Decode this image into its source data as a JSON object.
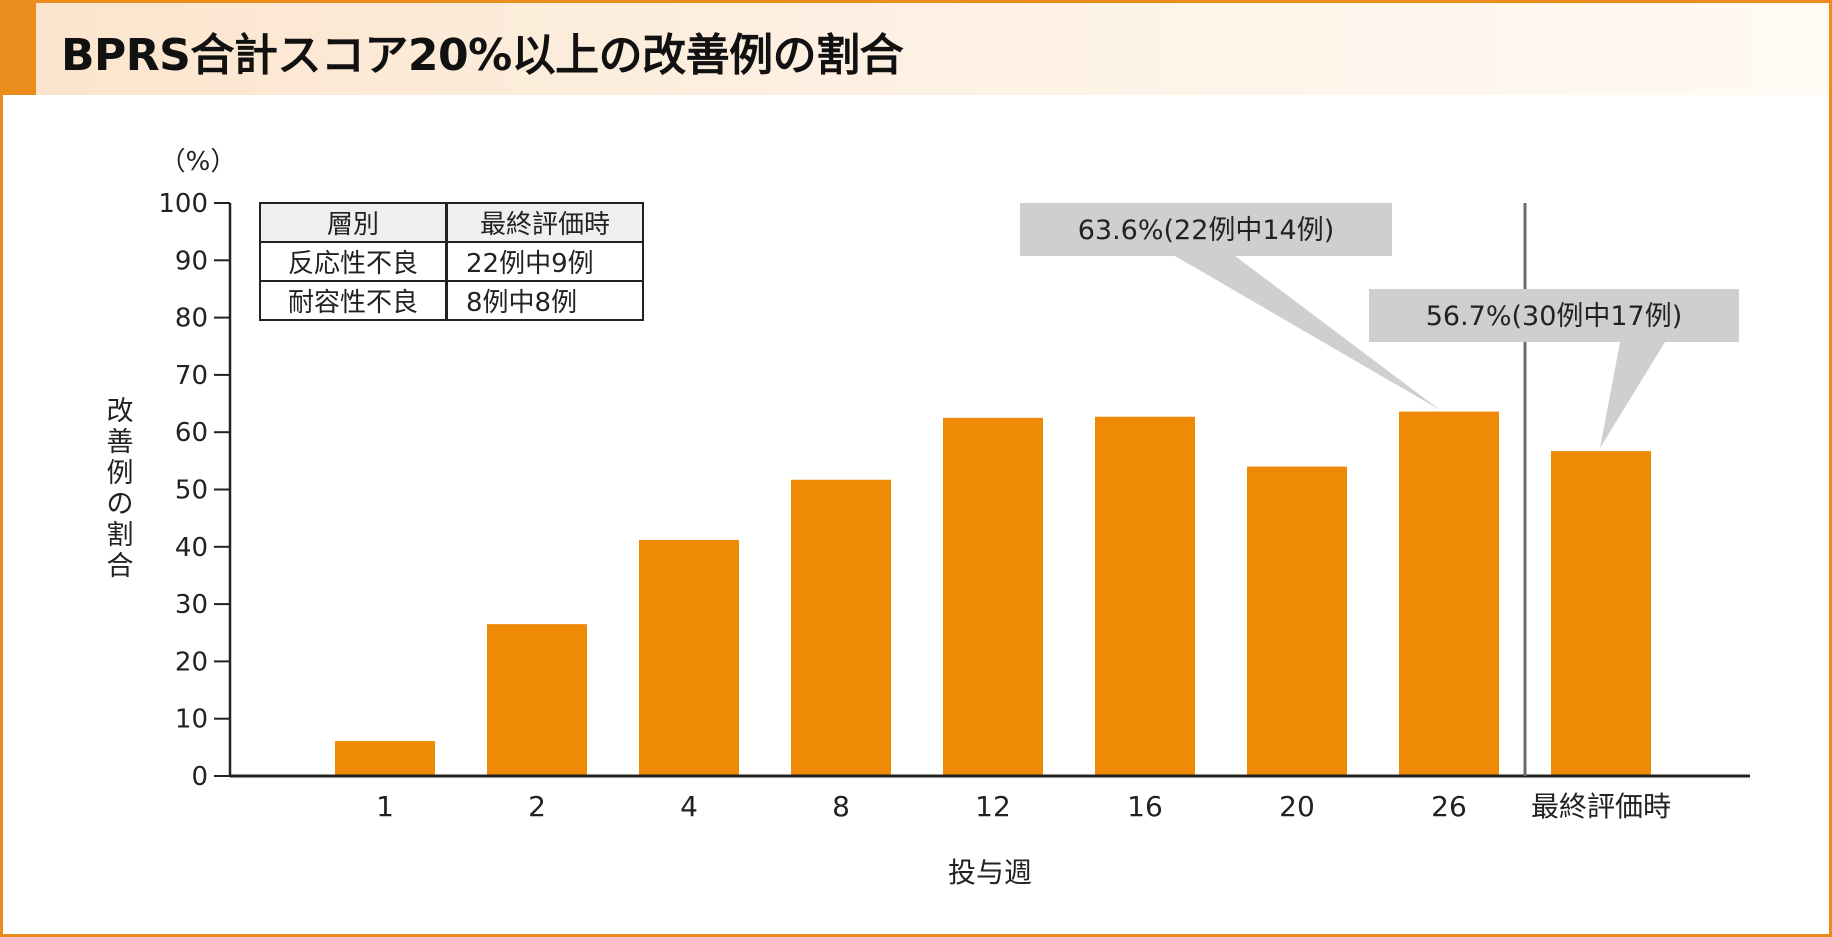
{
  "title": "BPRS合計スコア20%以上の改善例の割合",
  "legend_table": {
    "headers": [
      "層別",
      "最終評価時"
    ],
    "rows": [
      [
        "反応性不良",
        "22例中9例"
      ],
      [
        "耐容性不良",
        "8例中8例"
      ]
    ]
  },
  "colors": {
    "bar": "#ee8a05",
    "frame": "#ea8d1c",
    "callout": "#cfcfcf",
    "separator": "#6b6b6b"
  },
  "chart_data": {
    "type": "bar",
    "categories": [
      "1",
      "2",
      "4",
      "8",
      "12",
      "16",
      "20",
      "26",
      "最終評価時"
    ],
    "values": [
      6.1,
      26.5,
      41.2,
      51.7,
      62.5,
      62.7,
      54.0,
      63.6,
      56.7
    ],
    "xlabel": "投与週",
    "ylabel": "改善例の割合",
    "yunit": "（%）",
    "ylim": [
      0,
      100
    ],
    "yticks": [
      0,
      10,
      20,
      30,
      40,
      50,
      60,
      70,
      80,
      90,
      100
    ],
    "annotations": [
      {
        "text": "63.6%(22例中14例)",
        "category": "26"
      },
      {
        "text": "56.7%(30例中17例)",
        "category": "最終評価時"
      }
    ],
    "separator_before": "最終評価時",
    "grid": false,
    "legend": "none"
  }
}
